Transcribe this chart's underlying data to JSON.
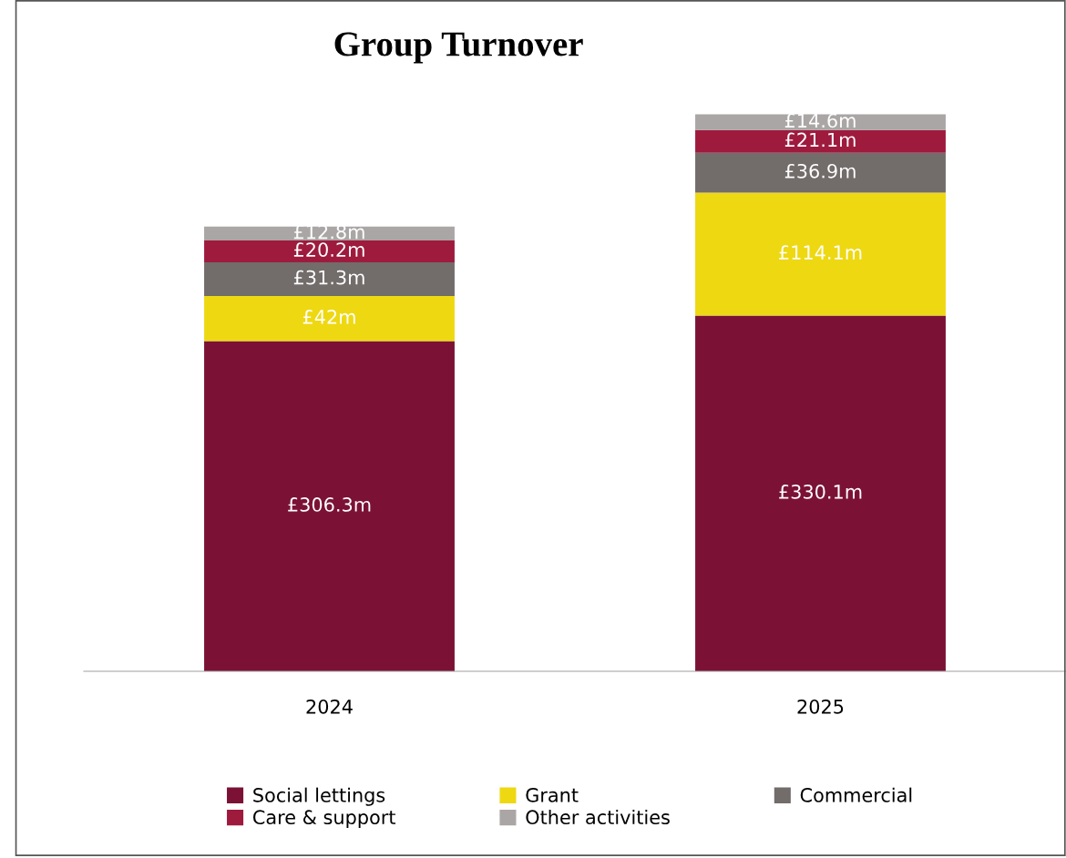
{
  "chart_data": {
    "type": "bar",
    "title": "Group Turnover",
    "stacked": true,
    "tick_labels": "x",
    "grid": false,
    "legend": "bottom",
    "categories": [
      "2024",
      "2025"
    ],
    "series": [
      {
        "name": "Social lettings",
        "color": "#7b1235",
        "values": [
          306.3,
          330.1
        ],
        "value_labels": [
          "£306.3m",
          "£330.1m"
        ]
      },
      {
        "name": "Grant",
        "color": "#eed812",
        "values": [
          42,
          114.1
        ],
        "value_labels": [
          "£42m",
          "£114.1m"
        ]
      },
      {
        "name": "Commercial",
        "color": "#726c6b",
        "values": [
          31.3,
          36.9
        ],
        "value_labels": [
          "£31.3m",
          "£36.9m"
        ]
      },
      {
        "name": "Care & support",
        "color": "#9e1b3e",
        "values": [
          20.2,
          21.1
        ],
        "value_labels": [
          "£20.2m",
          "£21.1m"
        ]
      },
      {
        "name": "Other activities",
        "color": "#aaa6a5",
        "values": [
          12.8,
          14.6
        ],
        "value_labels": [
          "£12.8m",
          "£14.6m"
        ]
      }
    ]
  }
}
